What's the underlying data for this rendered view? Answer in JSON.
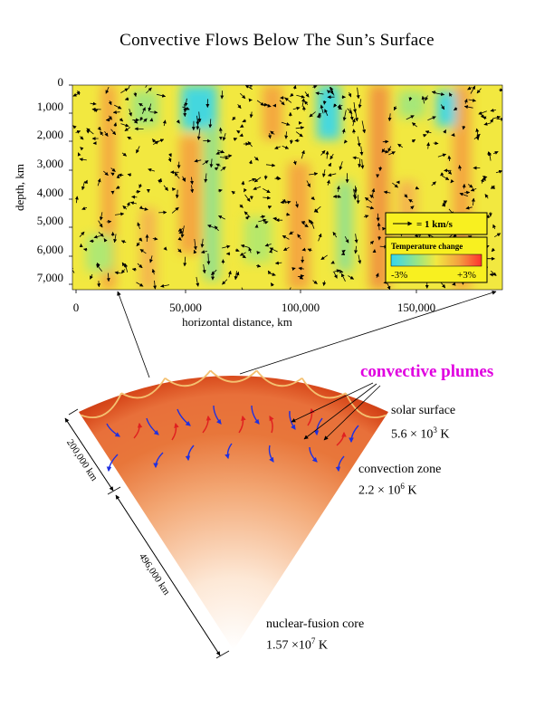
{
  "title": "Convective Flows Below The Sun’s Surface",
  "chart": {
    "type": "heatmap",
    "ylabel": "depth, km",
    "xlabel": "horizontal distance, km",
    "y_ticks": [
      "0",
      "1,000",
      "2,000",
      "3,000",
      "4,000",
      "5,000",
      "6,000",
      "7,000"
    ],
    "x_ticks": [
      "0",
      "50,000",
      "100,000",
      "150,000"
    ],
    "legend": {
      "arrow_label": "= 1 km/s",
      "temp_title": "Temperature change",
      "min_label": "-3%",
      "max_label": "+3%"
    }
  },
  "chart_data": {
    "type": "heatmap",
    "title": "Convective Flows Below The Sun’s Surface",
    "xlabel": "horizontal distance, km",
    "ylabel": "depth, km",
    "xlim": [
      0,
      190000
    ],
    "ylim": [
      7500,
      0
    ],
    "colorbar": {
      "label": "Temperature change",
      "range": [
        "-3%",
        "+3%"
      ]
    },
    "colors": {
      "cool": "#33d6f0",
      "neutral": "#f2e840",
      "warm": "#f08a3c",
      "hot": "#ff3030"
    }
  },
  "diagram": {
    "plumes_label": "convective plumes",
    "surface_label": "solar surface",
    "surface_temp_mantissa": "5.6 × 10",
    "surface_temp_exp": "3",
    "surface_temp_unit": " K",
    "zone_label": "convection zone",
    "zone_temp_mantissa": "2.2 × 10",
    "zone_temp_exp": "6",
    "zone_temp_unit": " K",
    "core_label": "nuclear-fusion core",
    "core_temp_mantissa": "1.57 ×10",
    "core_temp_exp": "7",
    "core_temp_unit": " K",
    "dim_outer": "200,000 km",
    "dim_inner": "496,000 km",
    "colors": {
      "plume_up": "#e02020",
      "plume_down": "#2030e0",
      "cell_edge": "#f4c070"
    }
  }
}
